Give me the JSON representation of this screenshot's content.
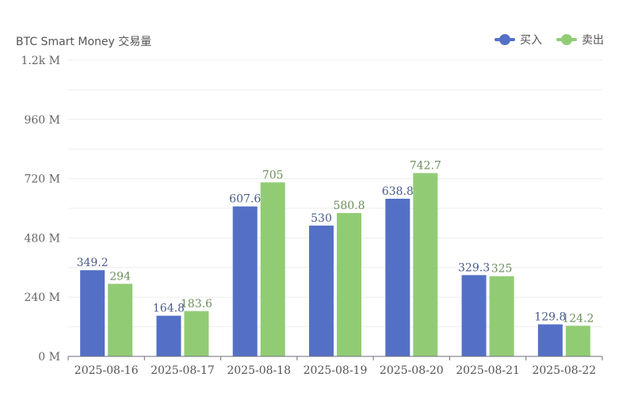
{
  "chart_data": {
    "type": "bar",
    "title": "BTC Smart Money 交易量",
    "categories": [
      "2025-08-16",
      "2025-08-17",
      "2025-08-18",
      "2025-08-19",
      "2025-08-20",
      "2025-08-21",
      "2025-08-22"
    ],
    "series": [
      {
        "name": "买入",
        "color": "#5470c6",
        "label_color": "#4a5b8c",
        "values": [
          349.2,
          164.8,
          607.6,
          530,
          638.8,
          329.3,
          129.8
        ]
      },
      {
        "name": "卖出",
        "color": "#91cc75",
        "label_color": "#6b8f5a",
        "values": [
          294,
          183.6,
          705,
          580.8,
          742.7,
          325,
          124.2
        ]
      }
    ],
    "yunit": "M",
    "ylim": [
      0,
      1200
    ],
    "yticks": [
      {
        "value": 0,
        "label": "0 M"
      },
      {
        "value": 240,
        "label": "240 M"
      },
      {
        "value": 480,
        "label": "480 M"
      },
      {
        "value": 720,
        "label": "720 M"
      },
      {
        "value": 960,
        "label": "960 M"
      },
      {
        "value": 1200,
        "label": "1.2k M"
      }
    ],
    "minor_grid_step": 120,
    "legend_position": "top-right",
    "grid": true
  }
}
